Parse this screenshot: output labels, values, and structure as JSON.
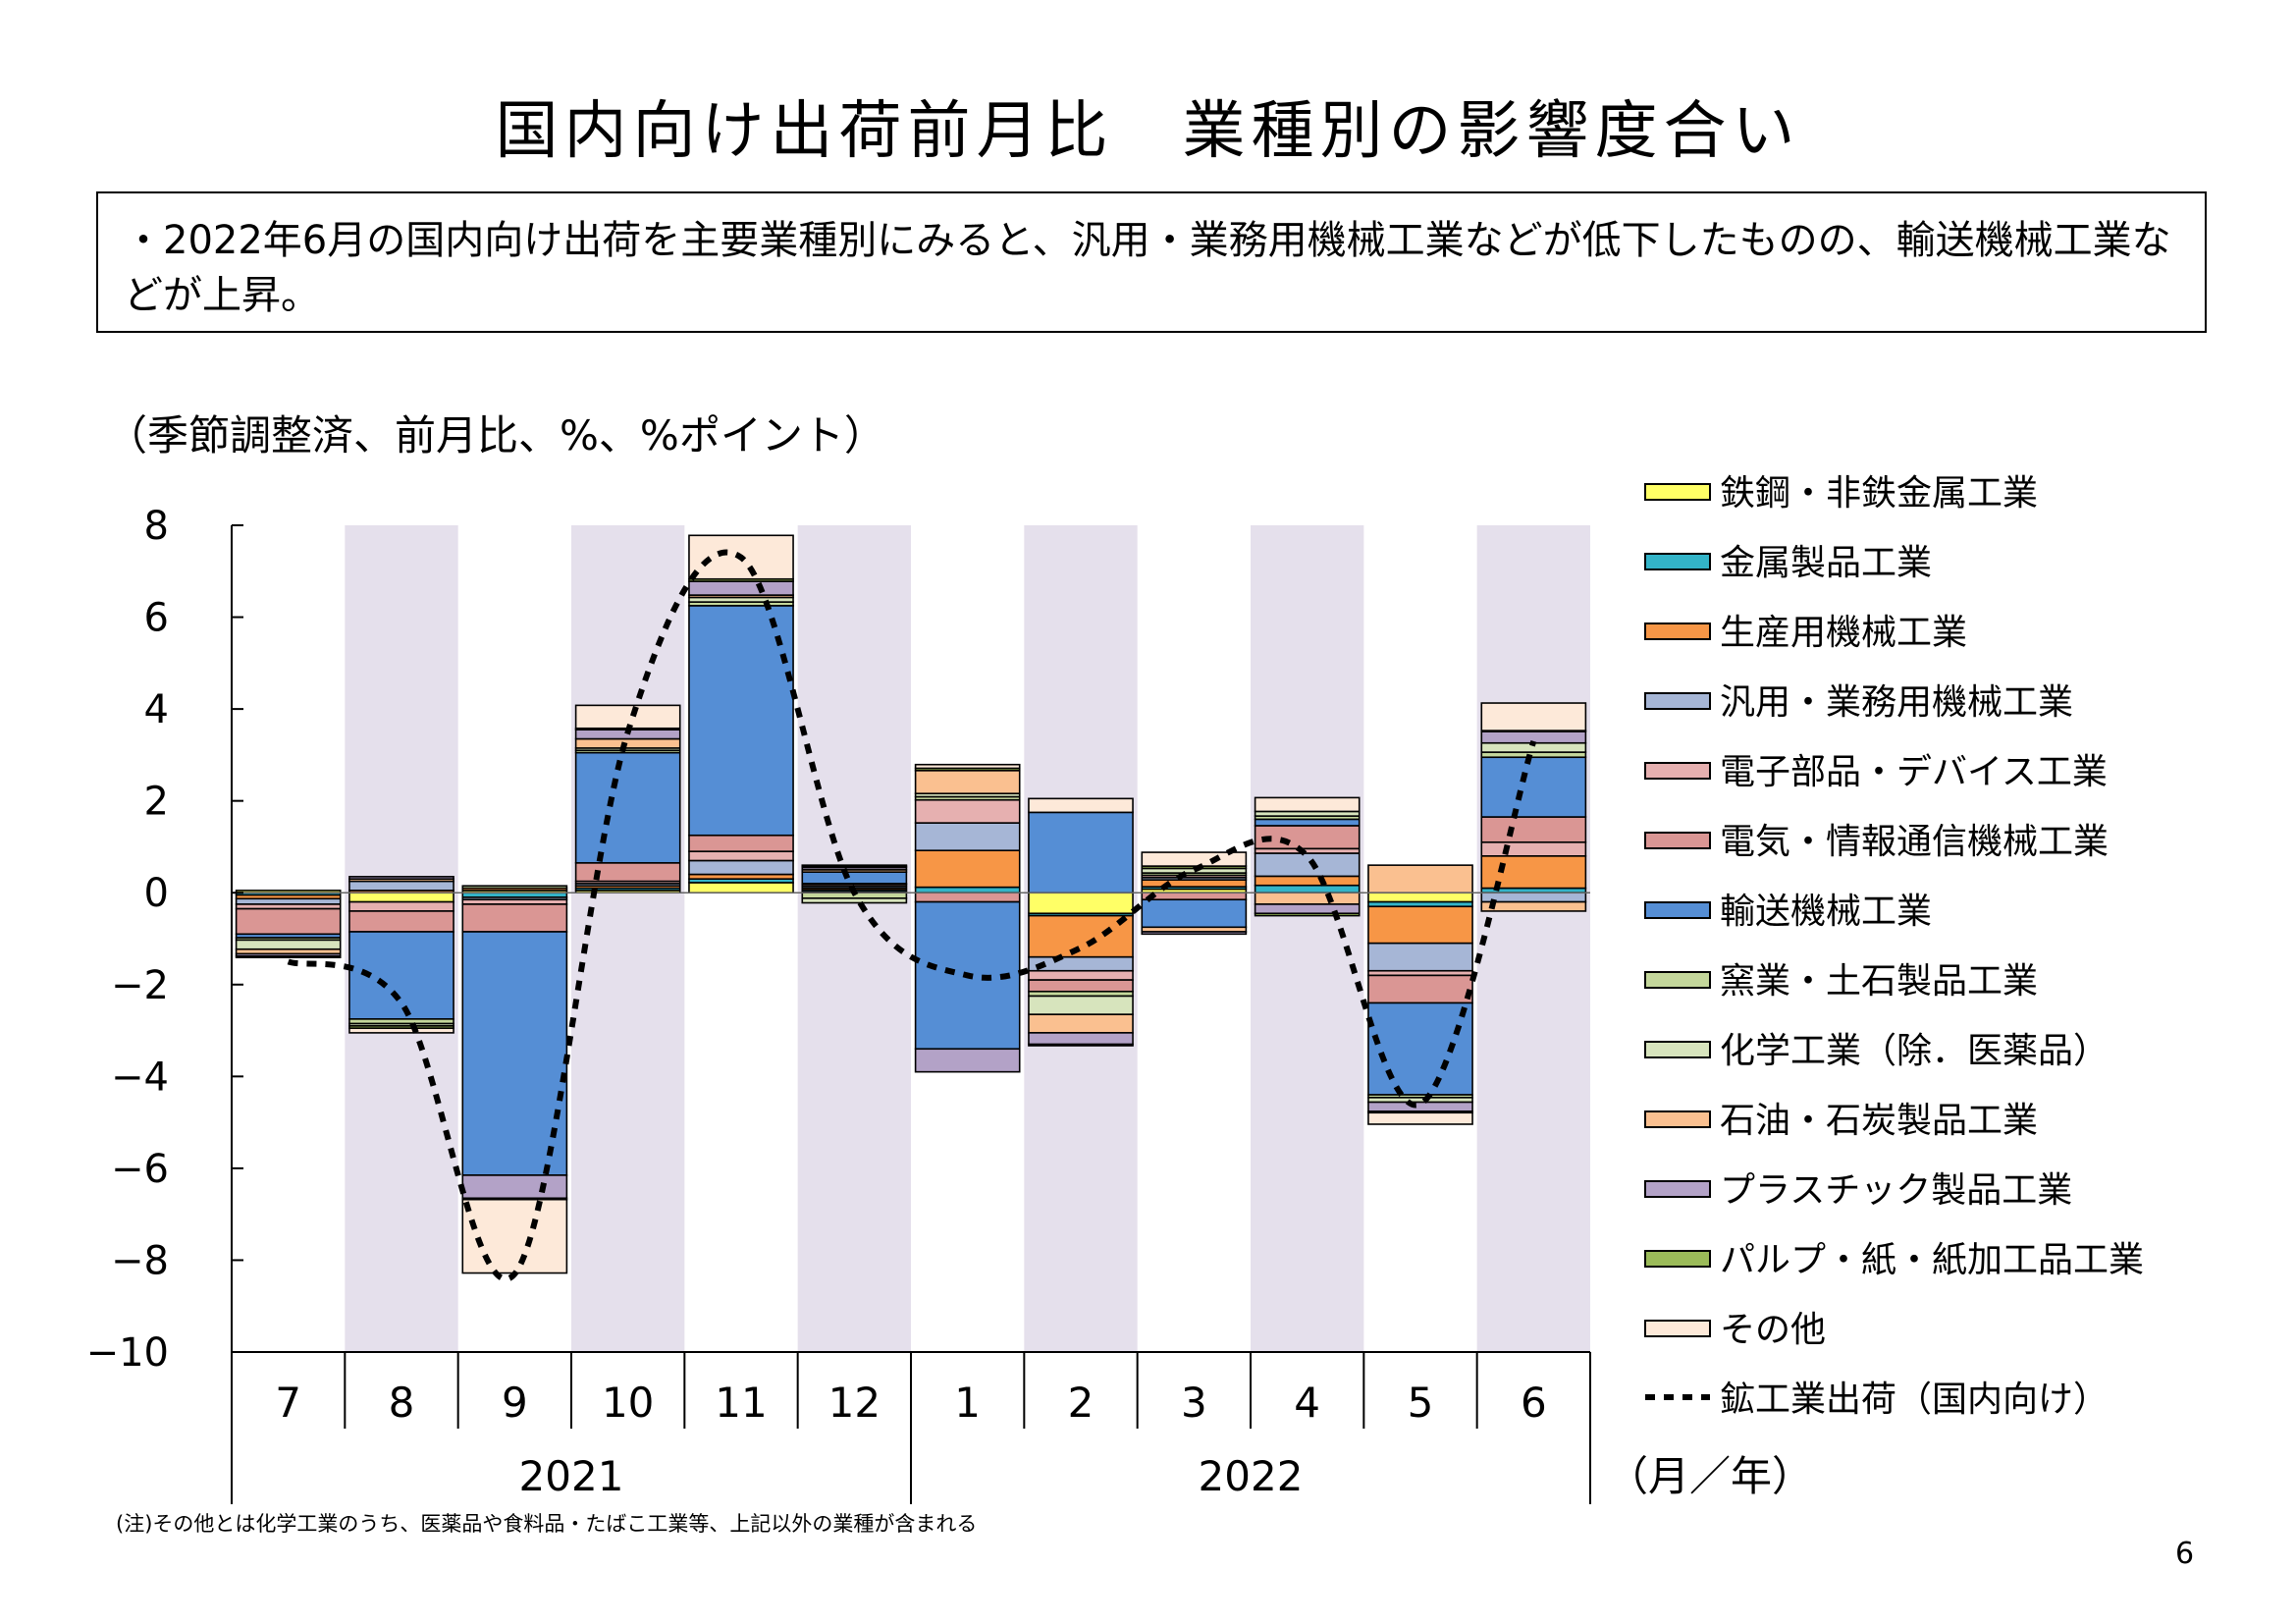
{
  "page": {
    "title": "国内向け出荷前月比　業種別の影響度合い",
    "summary": "・2022年6月の国内向け出荷を主要業種別にみると、汎用・業務用機械工業などが低下したものの、輸送機械工業などが上昇。",
    "unit_note": "（季節調整済、前月比、%、%ポイント）",
    "footnote": "(注)その他とは化学工業のうち、医薬品や食料品・たばこ工業等、上記以外の業種が含まれる",
    "page_number": "6"
  },
  "chart_data": {
    "type": "bar",
    "stacked": true,
    "categories": [
      "7",
      "8",
      "9",
      "10",
      "11",
      "12",
      "1",
      "2",
      "3",
      "4",
      "5",
      "6"
    ],
    "year_groups": [
      {
        "label": "2021",
        "from": 0,
        "to": 5
      },
      {
        "label": "2022",
        "from": 6,
        "to": 11
      }
    ],
    "x_unit": "（月／年）",
    "ylim": [
      -10,
      8
    ],
    "yticks": [
      8,
      6,
      4,
      2,
      0,
      -2,
      -4,
      -6,
      -8,
      -10
    ],
    "ytick_labels": [
      "8",
      "6",
      "4",
      "2",
      "0",
      "−2",
      "−4",
      "−6",
      "−8",
      "−10"
    ],
    "shaded_categories": [
      1,
      3,
      5,
      7,
      9,
      11
    ],
    "series": [
      {
        "name": "鉄鋼・非鉄金属工業",
        "color": "#ffff66",
        "values": [
          0.05,
          -0.2,
          0.05,
          0.05,
          0.22,
          0.02,
          0.0,
          -0.45,
          0.08,
          0.0,
          -0.2,
          0.0
        ]
      },
      {
        "name": "金属製品工業",
        "color": "#33b4c8",
        "values": [
          -0.05,
          0.0,
          -0.1,
          0.05,
          0.08,
          0.04,
          0.12,
          -0.05,
          0.05,
          0.16,
          -0.1,
          0.1
        ]
      },
      {
        "name": "生産用機械工業",
        "color": "#f79646",
        "values": [
          -0.08,
          0.05,
          0.05,
          0.05,
          0.1,
          0.04,
          0.8,
          -0.9,
          0.15,
          0.2,
          -0.8,
          0.7
        ]
      },
      {
        "name": "汎用・業務用機械工業",
        "color": "#a6b6d6",
        "values": [
          -0.12,
          0.2,
          -0.05,
          0.05,
          0.3,
          0.04,
          0.6,
          -0.3,
          0.05,
          0.5,
          -0.6,
          -0.2
        ]
      },
      {
        "name": "電子部品・デバイス工業",
        "color": "#e6b0b0",
        "values": [
          -0.1,
          -0.2,
          -0.1,
          0.05,
          0.2,
          0.04,
          0.5,
          -0.2,
          0.05,
          0.1,
          -0.1,
          0.3
        ]
      },
      {
        "name": "電気・情報通信機械工業",
        "color": "#da9694",
        "values": [
          -0.55,
          -0.45,
          -0.6,
          0.4,
          0.35,
          0.02,
          -0.2,
          -0.25,
          -0.15,
          0.5,
          -0.6,
          0.55
        ]
      },
      {
        "name": "輸送機械工業",
        "color": "#558ed5",
        "values": [
          -0.08,
          -1.9,
          -5.3,
          2.4,
          5.0,
          0.25,
          -3.2,
          1.75,
          -0.6,
          0.14,
          -2.0,
          1.3
        ]
      },
      {
        "name": "窯業・土石製品工業",
        "color": "#c4d79b",
        "values": [
          -0.05,
          -0.1,
          0.05,
          0.05,
          0.08,
          -0.12,
          0.07,
          -0.1,
          0.05,
          0.07,
          -0.06,
          0.11
        ]
      },
      {
        "name": "化学工業（除．医薬品）",
        "color": "#d7e4bd",
        "values": [
          -0.2,
          -0.05,
          0.0,
          0.05,
          0.1,
          -0.1,
          0.07,
          -0.4,
          0.1,
          0.1,
          -0.1,
          0.2
        ]
      },
      {
        "name": "石油・石炭製品工業",
        "color": "#fac090",
        "values": [
          -0.1,
          0.05,
          0.0,
          0.2,
          0.05,
          0.05,
          0.5,
          -0.4,
          -0.1,
          -0.25,
          0.6,
          -0.2
        ]
      },
      {
        "name": "プラスチック製品工業",
        "color": "#b3a2c7",
        "values": [
          -0.05,
          0.05,
          -0.5,
          0.2,
          0.3,
          0.05,
          -0.5,
          -0.25,
          -0.05,
          -0.2,
          -0.2,
          0.25
        ]
      },
      {
        "name": "パルプ・紙・紙加工品工業",
        "color": "#9bbb59",
        "values": [
          -0.03,
          -0.05,
          -0.03,
          0.03,
          0.05,
          0.03,
          0.05,
          -0.03,
          0.05,
          -0.05,
          -0.03,
          0.02
        ]
      },
      {
        "name": "その他",
        "color": "#fde9d9",
        "values": [
          0.0,
          -0.1,
          -1.6,
          0.5,
          0.95,
          0.02,
          0.08,
          0.3,
          0.3,
          0.3,
          -0.25,
          0.6
        ]
      }
    ],
    "line": {
      "name": "鉱工業出荷（国内向け）",
      "style": "dotted",
      "color": "#000000",
      "values": [
        -1.5,
        -2.4,
        -8.3,
        3.5,
        7.3,
        0.0,
        -1.8,
        -1.2,
        0.5,
        0.8,
        -4.6,
        3.3
      ]
    },
    "legend_position": "right"
  }
}
